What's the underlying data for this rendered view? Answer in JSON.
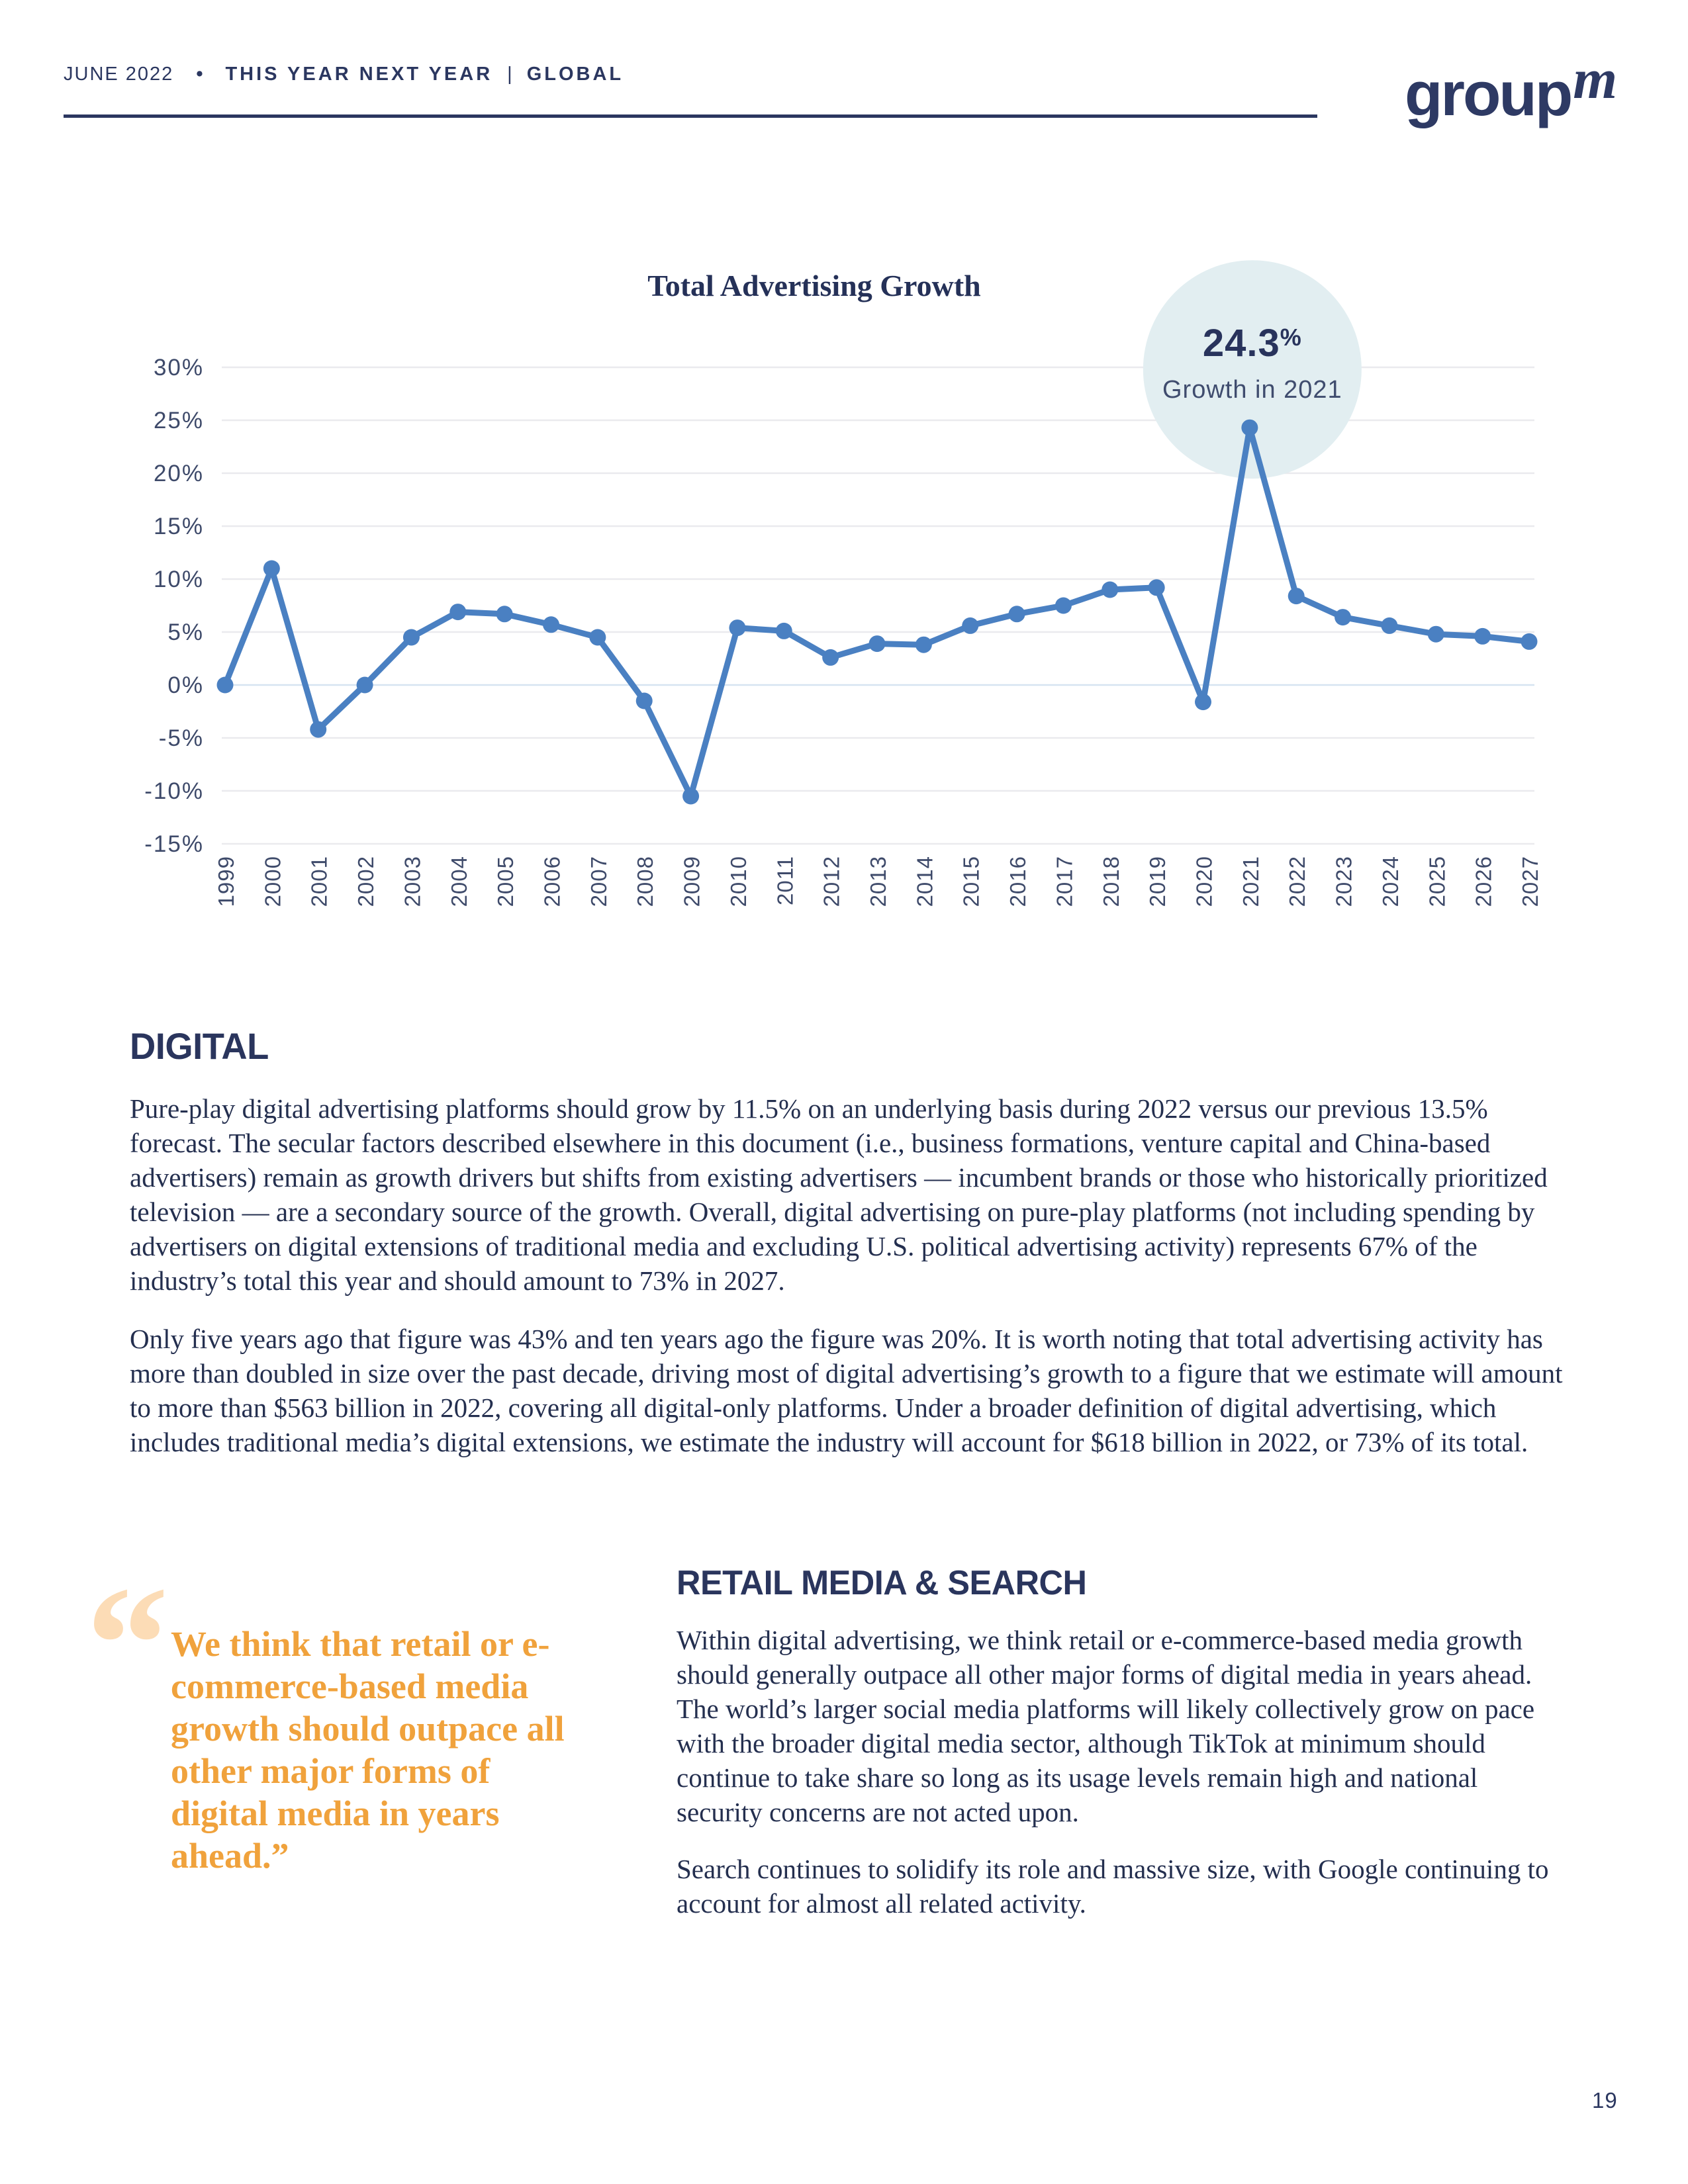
{
  "header": {
    "date": "JUNE 2022",
    "separator": "•",
    "publication": "THIS YEAR NEXT YEAR",
    "divider": "|",
    "region": "GLOBAL",
    "logo_text": "group",
    "logo_m": "m"
  },
  "chart": {
    "title": "Total Advertising Growth"
  },
  "chart_data": {
    "type": "line",
    "title": "Total Advertising Growth",
    "x": [
      1999,
      2000,
      2001,
      2002,
      2003,
      2004,
      2005,
      2006,
      2007,
      2008,
      2009,
      2010,
      2011,
      2012,
      2013,
      2014,
      2015,
      2016,
      2017,
      2018,
      2019,
      2020,
      2021,
      2022,
      2023,
      2024,
      2025,
      2026,
      2027
    ],
    "values": [
      0.0,
      11.0,
      -4.2,
      0.0,
      4.5,
      6.9,
      6.7,
      5.7,
      4.5,
      -1.5,
      -10.5,
      5.4,
      5.1,
      2.6,
      3.9,
      3.8,
      5.6,
      6.7,
      7.5,
      9.0,
      9.2,
      -1.6,
      24.3,
      8.4,
      6.4,
      5.6,
      4.8,
      4.6,
      4.1
    ],
    "ylim": [
      -15,
      30
    ],
    "ytick_step": 5,
    "ytick_suffix": "%",
    "grid": true,
    "legend": "none",
    "line_color": "#4a80c2",
    "annotation": {
      "x": 2021,
      "value": "24.3",
      "suffix": "%",
      "label": "Growth in 2021",
      "bg": "#e2eef1"
    }
  },
  "sections": {
    "digital": {
      "heading": "DIGITAL",
      "para1": "Pure-play digital advertising platforms should grow by 11.5% on an underlying basis during 2022 versus our previous 13.5% forecast. The secular factors described elsewhere in this document (i.e., business formations, venture capital and China-based advertisers) remain as growth drivers but shifts from existing advertisers — incumbent brands or those who historically prioritized television — are a secondary source of the growth. Overall, digital advertising on pure-play platforms (not including spending by advertisers on digital extensions of traditional media and excluding U.S. political advertising activity) represents 67% of the industry’s total this year and should amount to 73% in 2027.",
      "para2": "Only five years ago that figure was 43% and ten years ago the figure was 20%. It is worth noting that total advertising activity has more than doubled in size over the past decade, driving most of digital advertising’s growth to a figure that we estimate will amount to more than $563 billion in 2022, covering all digital-only platforms. Under a broader definition of digital advertising, which includes traditional media’s digital extensions, we estimate the industry will account for $618 billion in 2022, or 73% of its total."
    },
    "quote": {
      "mark": "“",
      "text": "We think that retail or e-commerce-based media growth should outpace all other major forms of digital media in years ahead.”"
    },
    "retail": {
      "heading": "RETAIL MEDIA & SEARCH",
      "para1": "Within digital advertising, we think retail or e-commerce-based media growth should generally outpace all other major forms of digital media in years ahead. The world’s larger social media platforms will likely collectively grow on pace with the broader digital media sector, although TikTok at minimum should continue to take share so long as its usage levels remain high and national security concerns are not acted upon.",
      "para2": "Search continues to solidify its role and massive size, with Google continuing to account for almost all related activity."
    }
  },
  "footer": {
    "page_number": "19"
  },
  "colors": {
    "navy": "#2b3760",
    "body_text": "#242f4f",
    "accent_orange": "#f0a23c",
    "quote_mark": "#fcdcb6",
    "line_blue": "#4a80c2",
    "callout_bg": "#e2eef1",
    "gridline": "#eaeaee",
    "zero_line": "#d6e4f1"
  }
}
